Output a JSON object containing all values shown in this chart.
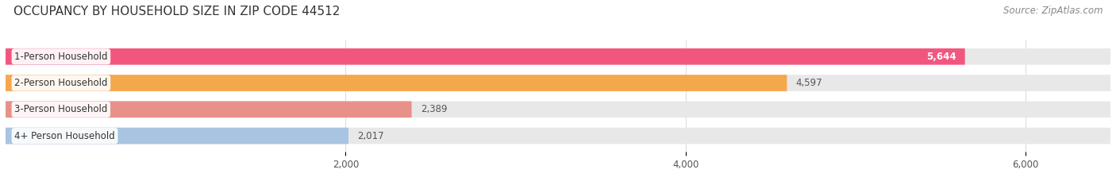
{
  "title": "OCCUPANCY BY HOUSEHOLD SIZE IN ZIP CODE 44512",
  "source": "Source: ZipAtlas.com",
  "categories": [
    "1-Person Household",
    "2-Person Household",
    "3-Person Household",
    "4+ Person Household"
  ],
  "values": [
    5644,
    4597,
    2389,
    2017
  ],
  "bar_colors": [
    "#F2567F",
    "#F5A84B",
    "#E8908A",
    "#A8C4E0"
  ],
  "value_inside": [
    true,
    false,
    false,
    false
  ],
  "bar_bg_color": "#EBEBEB",
  "xlim_max": 6500,
  "xticks": [
    2000,
    4000,
    6000
  ],
  "xtick_labels": [
    "2,000",
    "4,000",
    "6,000"
  ],
  "label_fontsize": 8.5,
  "value_fontsize": 8.5,
  "title_fontsize": 11,
  "source_fontsize": 8.5,
  "bar_height": 0.62,
  "bar_gap": 0.38,
  "background_color": "#FFFFFF",
  "bar_bg_color_hex": "#E8E8E8",
  "grid_color": "#DDDDDD",
  "text_color": "#555555",
  "title_color": "#333333"
}
